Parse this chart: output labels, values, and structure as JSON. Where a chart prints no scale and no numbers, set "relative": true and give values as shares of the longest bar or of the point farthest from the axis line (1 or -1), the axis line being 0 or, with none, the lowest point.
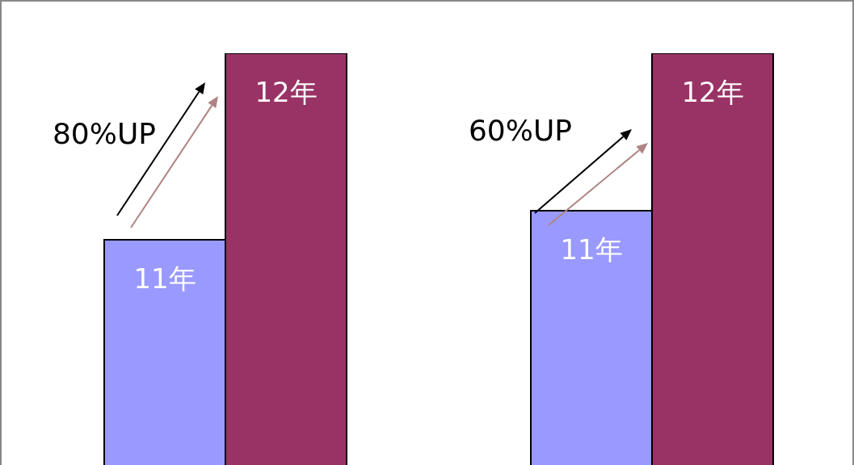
{
  "chart_data": [
    {
      "type": "bar",
      "relative": true,
      "categories": [
        "11年",
        "12年"
      ],
      "values": [
        0.549,
        1
      ],
      "colors": [
        "#9999ff",
        "#993366"
      ],
      "annotations": [
        "80%UP"
      ]
    },
    {
      "type": "bar",
      "relative": true,
      "categories": [
        "11年",
        "12年"
      ],
      "values": [
        0.619,
        1
      ],
      "colors": [
        "#9999ff",
        "#993366"
      ],
      "annotations": [
        "60%UP"
      ]
    }
  ]
}
